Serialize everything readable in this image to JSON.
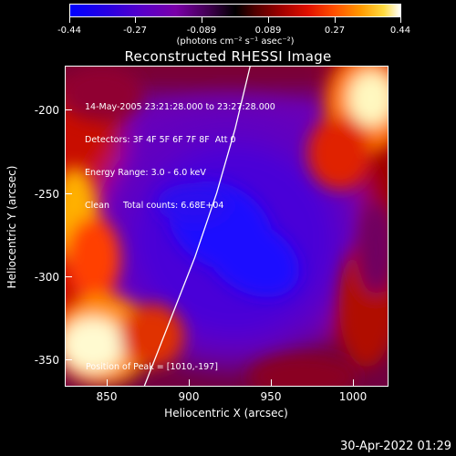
{
  "colorbar": {
    "ticks": [
      "-0.44",
      "-0.27",
      "-0.089",
      "0.089",
      "0.27",
      "0.44"
    ],
    "units": "(photons cm⁻² s⁻¹ asec⁻²)",
    "range": [
      -0.44,
      0.44
    ]
  },
  "chart_data": {
    "type": "heatmap",
    "title": "Reconstructed RHESSI Image",
    "xlabel": "Heliocentric X (arcsec)",
    "ylabel": "Heliocentric Y (arcsec)",
    "xticks": [
      "850",
      "900",
      "950",
      "1000"
    ],
    "yticks": [
      "-200",
      "-250",
      "-300",
      "-350"
    ],
    "xlim": [
      828,
      1020
    ],
    "ylim": [
      -369,
      -175
    ],
    "info_lines": [
      "14-May-2005 23:21:28.000 to 23:27:28.000",
      "Detectors: 3F 4F 5F 6F 7F 8F  Att 0",
      "Energy Range: 3.0 - 6.0 keV",
      "Clean     Total counts: 6.68E+04"
    ],
    "peak_label": "Position of Peak = [1010,-197]",
    "peak": [
      1010,
      -197
    ],
    "limb_points": [
      [
        875,
        -369
      ],
      [
        890,
        -330
      ],
      [
        905,
        -291
      ],
      [
        918,
        -252
      ],
      [
        929,
        -213
      ],
      [
        938,
        -175
      ]
    ]
  },
  "footer": {
    "timestamp": "30-Apr-2022 01:29"
  }
}
